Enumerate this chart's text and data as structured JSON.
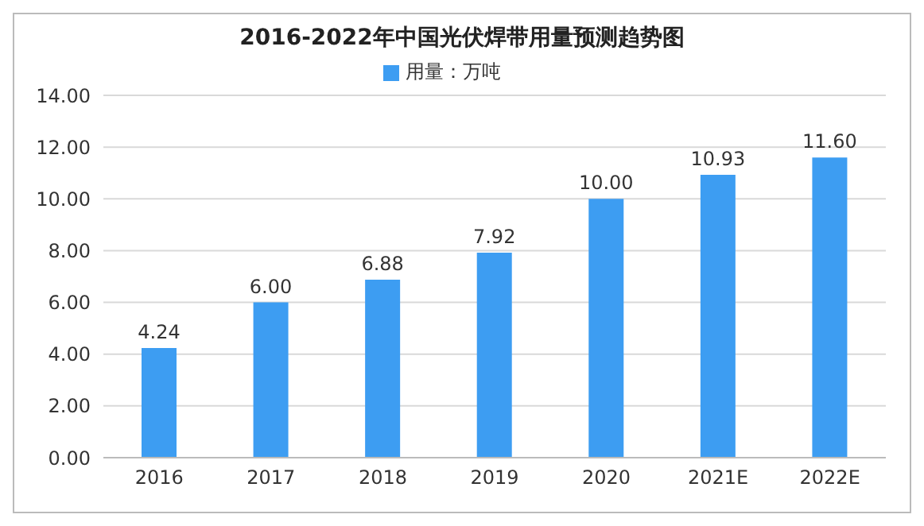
{
  "chart_data": {
    "type": "bar",
    "title": "2016-2022年中国光伏焊带用量预测趋势图",
    "categories": [
      "2016",
      "2017",
      "2018",
      "2019",
      "2020",
      "2021E",
      "2022E"
    ],
    "series": [
      {
        "name": "用量：万吨",
        "color": "#3d9df2",
        "values": [
          4.24,
          6.0,
          6.88,
          7.92,
          10.0,
          10.93,
          11.6
        ],
        "value_labels": [
          "4.24",
          "6.00",
          "6.88",
          "7.92",
          "10.00",
          "10.93",
          "11.60"
        ]
      }
    ],
    "ylim": [
      0,
      14
    ],
    "yticks": [
      {
        "value": 0,
        "label": "0.00"
      },
      {
        "value": 2,
        "label": "2.00"
      },
      {
        "value": 4,
        "label": "4.00"
      },
      {
        "value": 6,
        "label": "6.00"
      },
      {
        "value": 8,
        "label": "8.00"
      },
      {
        "value": 10,
        "label": "10.00"
      },
      {
        "value": 12,
        "label": "12.00"
      },
      {
        "value": 14,
        "label": "14.00"
      }
    ],
    "grid": "y",
    "legend": "top"
  }
}
